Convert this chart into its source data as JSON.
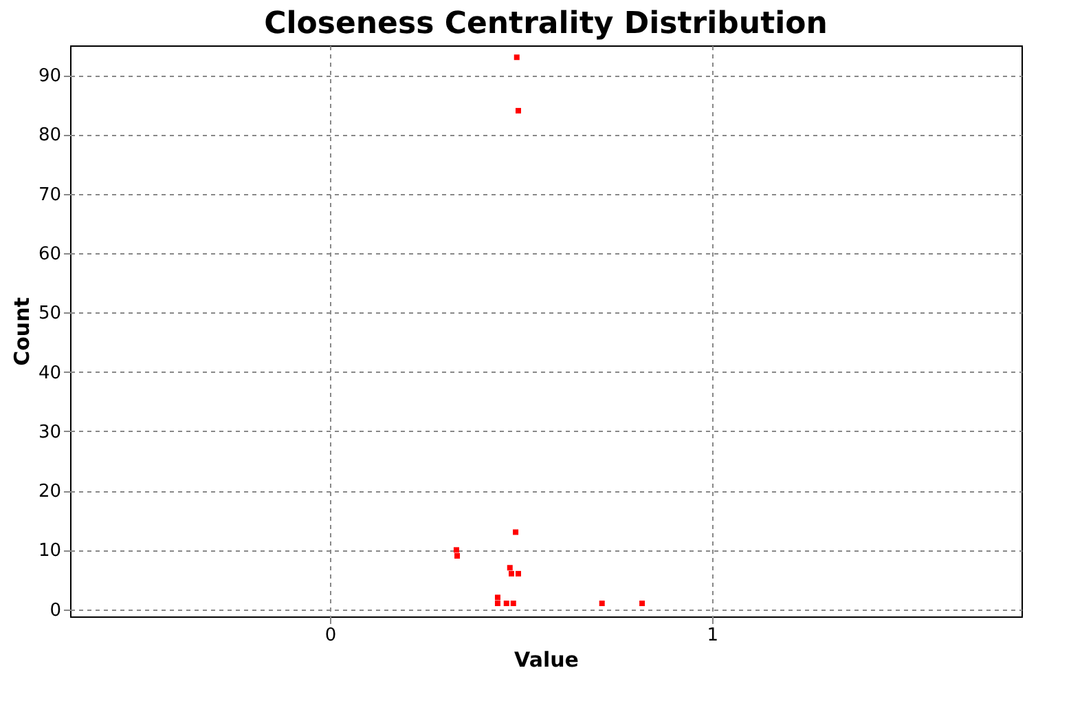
{
  "chart_data": {
    "type": "scatter",
    "title": "Closeness Centrality Distribution",
    "xlabel": "Value",
    "ylabel": "Count",
    "x": [
      0.489,
      0.493,
      0.486,
      0.331,
      0.333,
      0.471,
      0.475,
      0.493,
      0.439,
      0.439,
      0.462,
      0.48,
      0.712,
      0.817
    ],
    "series": [
      {
        "color": "#ff0000",
        "values": [
          93,
          84,
          13,
          10,
          9,
          7,
          6,
          6,
          2,
          1,
          1,
          1,
          1,
          1
        ]
      }
    ],
    "xlim": [
      -0.68,
      1.81
    ],
    "ylim": [
      -1.2,
      95
    ],
    "xticks": [
      0,
      1
    ],
    "yticks": [
      0,
      10,
      20,
      30,
      40,
      50,
      60,
      70,
      80,
      90
    ],
    "grid": true,
    "marker": "square",
    "legend": false
  }
}
